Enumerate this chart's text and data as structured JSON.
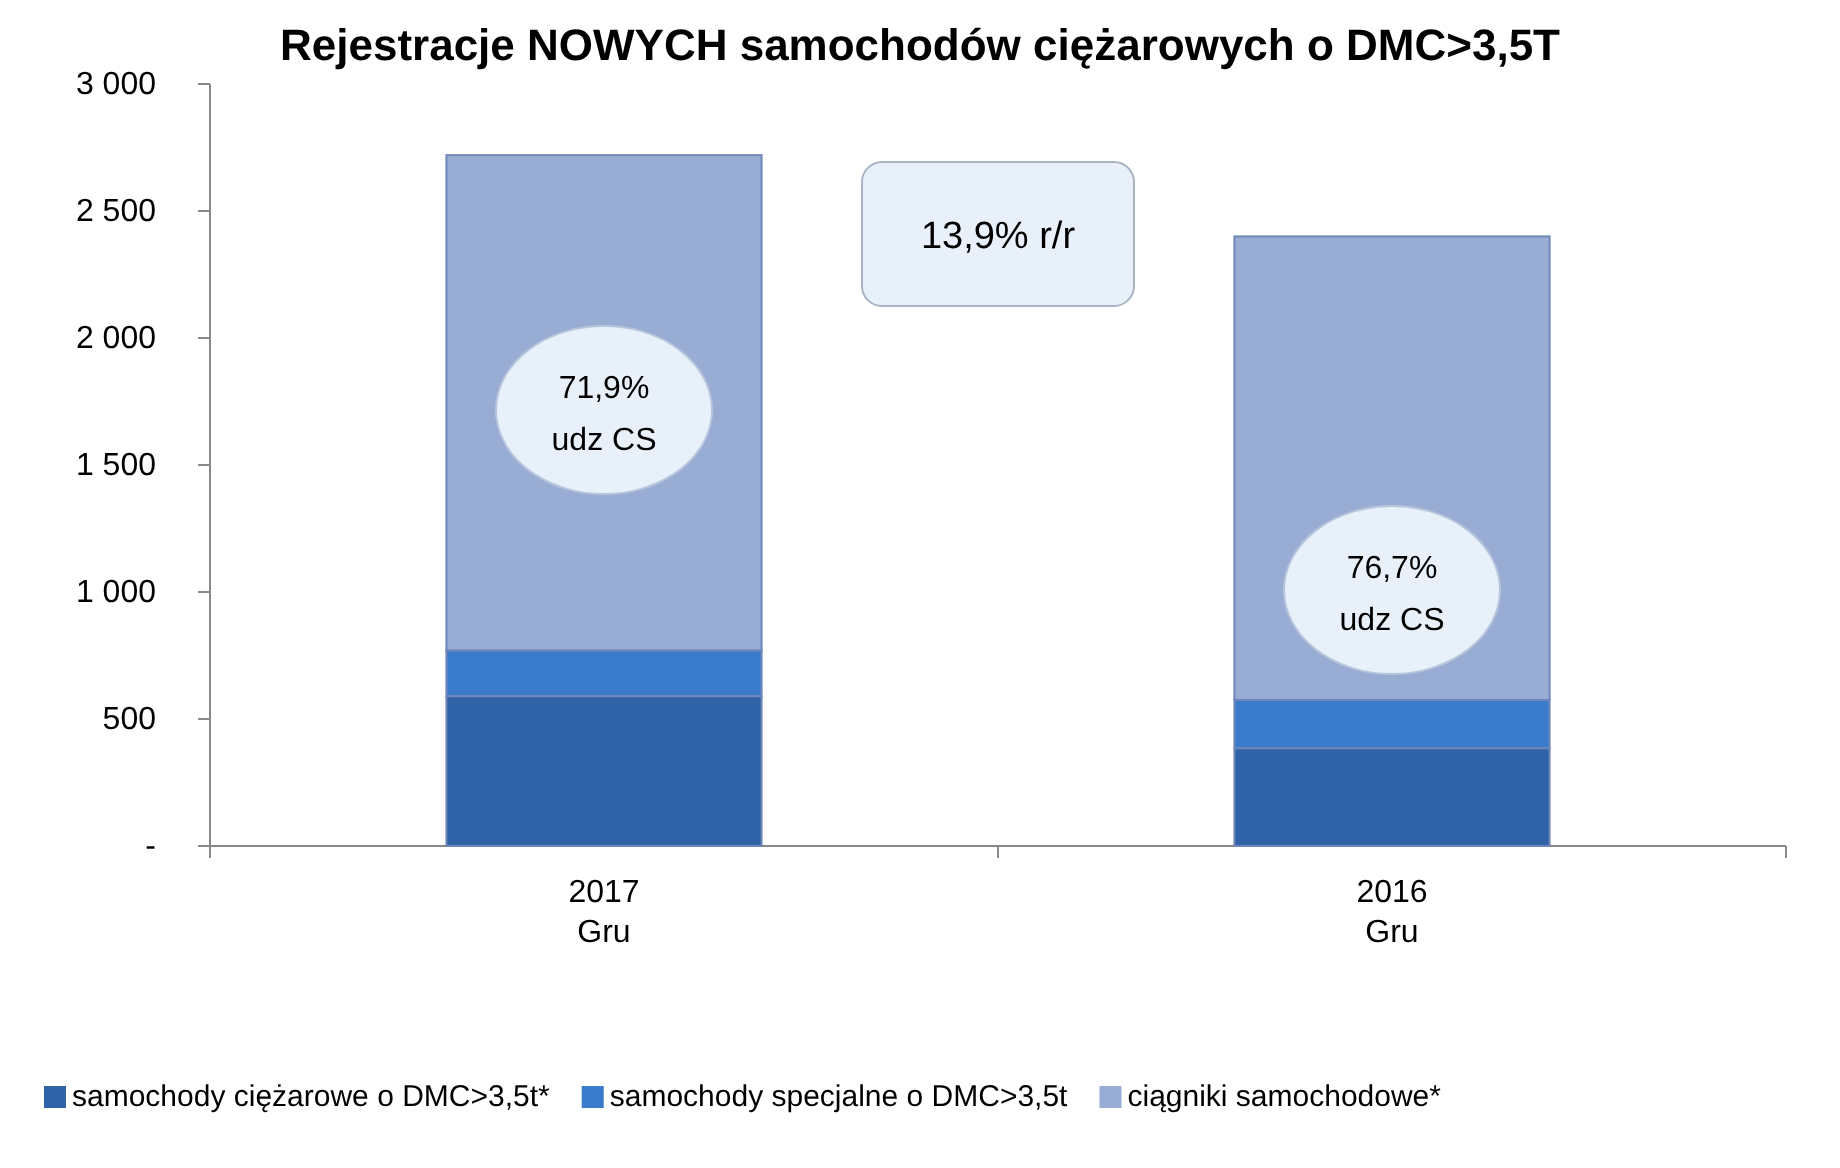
{
  "chart_data": {
    "type": "bar",
    "stacked": true,
    "title": "Rejestracje NOWYCH samochodów ciężarowych o DMC>3,5T",
    "categories": [
      "2017\nGru",
      "2016\nGru"
    ],
    "series": [
      {
        "name": "samochody ciężarowe o DMC>3,5t*",
        "color": "#2f62a6",
        "values": [
          590,
          385
        ]
      },
      {
        "name": "samochody specjalne o DMC>3,5t",
        "color": "#3b7bcc",
        "values": [
          180,
          190
        ]
      },
      {
        "name": "ciągniki samochodowe*",
        "color": "#98acd4",
        "values": [
          1950,
          1825
        ]
      }
    ],
    "ylim": [
      0,
      3000
    ],
    "yticks": [
      {
        "value": 0,
        "label": "-"
      },
      {
        "value": 500,
        "label": "500"
      },
      {
        "value": 1000,
        "label": "1 000"
      },
      {
        "value": 1500,
        "label": "1 500"
      },
      {
        "value": 2000,
        "label": "2 000"
      },
      {
        "value": 2500,
        "label": "2 500"
      },
      {
        "value": 3000,
        "label": "3 000"
      }
    ],
    "grid": false,
    "legend": "bottom",
    "annotations": [
      "71,9%\nudz CS",
      "76,7%\nudz CS",
      "13,9% r/r"
    ]
  }
}
